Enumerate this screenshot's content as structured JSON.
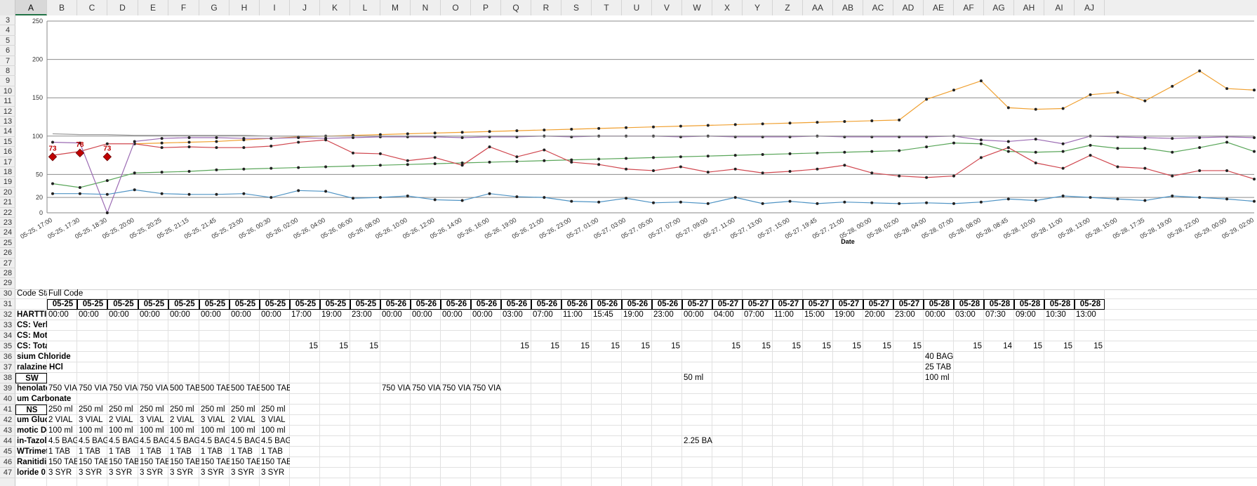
{
  "columns": [
    "A",
    "B",
    "C",
    "D",
    "E",
    "F",
    "G",
    "H",
    "I",
    "J",
    "K",
    "L",
    "M",
    "N",
    "O",
    "P",
    "Q",
    "R",
    "S",
    "T",
    "U",
    "V",
    "W",
    "X",
    "Y",
    "Z",
    "AA",
    "AB",
    "AC",
    "AD",
    "AE",
    "AF",
    "AG",
    "AH",
    "AI",
    "AJ"
  ],
  "rows": [
    "3",
    "4",
    "5",
    "6",
    "7",
    "8",
    "9",
    "10",
    "11",
    "12",
    "13",
    "14",
    "15",
    "16",
    "17",
    "18",
    "19",
    "20",
    "21",
    "22",
    "23",
    "24",
    "25",
    "26",
    "27",
    "28",
    "29",
    "30",
    "31",
    "32",
    "33",
    "34",
    "35",
    "36",
    "37",
    "38",
    "39",
    "40",
    "41",
    "42",
    "43",
    "44",
    "45",
    "46",
    "47"
  ],
  "chart_data": {
    "type": "line",
    "xlabel": "Date",
    "ylabel": "",
    "ylim": [
      0,
      250
    ],
    "yticks": [
      0,
      20,
      50,
      100,
      150,
      200,
      250
    ],
    "grid": true,
    "categories": [
      "05-25, 17:00",
      "05-25, 17:30",
      "05-25, 18:30",
      "05-25, 20:00",
      "05-25, 20:25",
      "05-25, 21:15",
      "05-25, 21:45",
      "05-25, 23:00",
      "05-26, 00:30",
      "05-26, 02:00",
      "05-26, 04:00",
      "05-26, 06:00",
      "05-26, 08:00",
      "05-26, 10:00",
      "05-26, 12:00",
      "05-26, 14:00",
      "05-26, 16:00",
      "05-26, 19:00",
      "05-26, 21:00",
      "05-26, 23:00",
      "05-27, 01:00",
      "05-27, 03:00",
      "05-27, 05:00",
      "05-27, 07:00",
      "05-27, 09:00",
      "05-27, 11:00",
      "05-27, 13:00",
      "05-27, 15:00",
      "05-27, 19:45",
      "05-27, 21:00",
      "05-28, 00:00",
      "05-28, 02:00",
      "05-28, 04:00",
      "05-28, 07:00",
      "05-28, 08:00",
      "05-28, 08:45",
      "05-28, 10:00",
      "05-28, 11:00",
      "05-28, 13:00",
      "05-28, 15:00",
      "05-28, 17:35",
      "05-28, 19:00",
      "05-28, 22:00",
      "05-29, 00:00",
      "05-29, 02:00"
    ],
    "series": [
      {
        "name": "",
        "color": "#f0a030",
        "values": [
          null,
          null,
          null,
          90,
          91,
          92,
          93,
          95,
          97,
          99,
          100,
          101,
          102,
          103,
          104,
          105,
          106,
          107,
          108,
          109,
          110,
          111,
          112,
          113,
          114,
          115,
          116,
          117,
          118,
          119,
          120,
          121,
          148,
          160,
          172,
          137,
          135,
          136,
          154,
          157,
          146,
          165,
          185,
          162,
          160
        ]
      },
      {
        "name": "",
        "color": "#5aa65a",
        "values": [
          38,
          33,
          42,
          52,
          53,
          54,
          56,
          57,
          58,
          59,
          60,
          61,
          62,
          63,
          64,
          65,
          66,
          67,
          68,
          69,
          70,
          71,
          72,
          73,
          74,
          75,
          76,
          77,
          78,
          79,
          80,
          81,
          86,
          91,
          90,
          80,
          79,
          80,
          88,
          84,
          84,
          79,
          85,
          92,
          80
        ]
      },
      {
        "name": "",
        "color": "#d0474f",
        "values": [
          75,
          80,
          90,
          90,
          85,
          86,
          85,
          85,
          87,
          92,
          95,
          78,
          77,
          68,
          72,
          62,
          86,
          73,
          82,
          66,
          63,
          57,
          55,
          60,
          53,
          57,
          52,
          54,
          57,
          62,
          52,
          48,
          46,
          48,
          72,
          85,
          65,
          58,
          75,
          60,
          58,
          48,
          55,
          55,
          44
        ]
      },
      {
        "name": "",
        "color": "#9b6bb3",
        "values": [
          92,
          91,
          0,
          93,
          97,
          98,
          98,
          97,
          97,
          98,
          97,
          98,
          99,
          99,
          99,
          98,
          99,
          99,
          100,
          99,
          100,
          100,
          100,
          99,
          100,
          99,
          99,
          99,
          100,
          99,
          99,
          99,
          99,
          100,
          95,
          93,
          96,
          90,
          100,
          99,
          98,
          97,
          98,
          99,
          98
        ]
      },
      {
        "name": "",
        "color": "#9a9a9a",
        "values": [
          103,
          102,
          102,
          101,
          101,
          101,
          101,
          101,
          100,
          100,
          100,
          100,
          100,
          100,
          100,
          100,
          100,
          100,
          100,
          100,
          100,
          100,
          100,
          100,
          100,
          100,
          100,
          100,
          100,
          100,
          100,
          100,
          100,
          100,
          100,
          100,
          100,
          100,
          100,
          100,
          100,
          100,
          100,
          100,
          100
        ]
      },
      {
        "name": "",
        "color": "#4e93c4",
        "values": [
          25,
          25,
          24,
          30,
          25,
          24,
          24,
          25,
          20,
          29,
          28,
          19,
          20,
          22,
          17,
          16,
          25,
          21,
          20,
          15,
          14,
          19,
          13,
          14,
          12,
          20,
          12,
          15,
          12,
          14,
          13,
          12,
          13,
          12,
          14,
          18,
          16,
          22,
          20,
          18,
          16,
          22,
          20,
          18,
          15
        ]
      }
    ],
    "annotations": [
      {
        "label": "78",
        "x": "05-25, 17:30",
        "y": 78,
        "color": "#c00000"
      },
      {
        "label": "73",
        "x": "05-25, 17:00",
        "y": 73,
        "color": "#c00000"
      },
      {
        "label": "73",
        "x": "05-25, 18:30",
        "y": 73,
        "color": "#c00000"
      }
    ]
  },
  "sheet": {
    "r30_a": "Code Sta",
    "r30_b": "Full Code",
    "date_headers": [
      "05-25",
      "05-25",
      "05-25",
      "05-25",
      "05-25",
      "05-25",
      "05-25",
      "05-25",
      "05-25",
      "05-25",
      "05-25",
      "05-26",
      "05-26",
      "05-26",
      "05-26",
      "05-26",
      "05-26",
      "05-26",
      "05-26",
      "05-26",
      "05-26",
      "05-27",
      "05-27",
      "05-27",
      "05-27",
      "05-27",
      "05-27",
      "05-27",
      "05-27",
      "05-28",
      "05-28",
      "05-28",
      "05-28",
      "05-28",
      "05-28"
    ],
    "time_headers": [
      "00:00",
      "00:00",
      "00:00",
      "00:00",
      "00:00",
      "00:00",
      "00:00",
      "00:00",
      "17:00",
      "19:00",
      "23:00",
      "00:00",
      "00:00",
      "00:00",
      "00:00",
      "03:00",
      "07:00",
      "11:00",
      "15:45",
      "19:00",
      "23:00",
      "00:00",
      "04:00",
      "07:00",
      "11:00",
      "15:00",
      "19:00",
      "20:00",
      "23:00",
      "00:00",
      "03:00",
      "07:30",
      "09:00",
      "10:30",
      "13:00"
    ],
    "row_labels": {
      "r32": "HARTTIN",
      "r33": "CS: Verbal",
      "r34": "CS: Motor",
      "r35": "CS: Total",
      "r36": "sium Chloride",
      "r37": "ralazine HCl",
      "r38": "SW",
      "r39": "henolate",
      "r40": "um Carbonate",
      "r41": "NS",
      "r42": "um Gluc",
      "r43": "motic De",
      "r44": "in-Tazol",
      "r45": "WTrimetl",
      "r46": "Ranitidin",
      "r47": "loride 0"
    },
    "gcs_total": [
      "",
      "",
      "",
      "",
      "",
      "",
      "",
      "",
      "15",
      "15",
      "15",
      "",
      "",
      "",
      "",
      "15",
      "15",
      "15",
      "15",
      "15",
      "15",
      "",
      "15",
      "15",
      "15",
      "15",
      "15",
      "15",
      "15",
      "",
      "15",
      "14",
      "15",
      "15",
      "15"
    ],
    "r36_vals": {
      "AE": "40 BAG"
    },
    "r37_vals": {
      "AE": "25 TAB"
    },
    "r38_vals": {
      "W": "50 ml",
      "AE": "100 ml"
    },
    "r39_vals": [
      "750 VIAL",
      "750 VIAL",
      "750 VIAL",
      "750 VIAL",
      "500 TAB",
      "500 TAB",
      "500 TAB",
      "500 TAB",
      "",
      "",
      "",
      "750 VIAL",
      "750 VIAL",
      "750 VIAL",
      "750 VIAL"
    ],
    "r41_vals": [
      "250 ml",
      "250 ml",
      "250 ml",
      "250 ml",
      "250 ml",
      "250 ml",
      "250 ml",
      "250 ml"
    ],
    "r42_vals": [
      "2 VIAL",
      "3 VIAL",
      "2 VIAL",
      "3 VIAL",
      "2 VIAL",
      "3 VIAL",
      "2 VIAL",
      "3 VIAL"
    ],
    "r43_vals": [
      "100 ml",
      "100 ml",
      "100 ml",
      "100 ml",
      "100 ml",
      "100 ml",
      "100 ml",
      "100 ml"
    ],
    "r44_vals": [
      "4.5 BAG",
      "4.5 BAG",
      "4.5 BAG",
      "4.5 BAG",
      "4.5 BAG",
      "4.5 BAG",
      "4.5 BAG",
      "4.5 BAG"
    ],
    "r44_w": "2.25 BAG",
    "r45_vals": [
      "1 TAB",
      "1 TAB",
      "1 TAB",
      "1 TAB",
      "1 TAB",
      "1 TAB",
      "1 TAB",
      "1 TAB"
    ],
    "r46_vals": [
      "150 TAB",
      "150 TAB",
      "150 TAB",
      "150 TAB",
      "150 TAB",
      "150 TAB",
      "150 TAB",
      "150 TAB"
    ],
    "r47_vals": [
      "3 SYR",
      "3 SYR",
      "3 SYR",
      "3 SYR",
      "3 SYR",
      "3 SYR",
      "3 SYR",
      "3 SYR"
    ]
  }
}
